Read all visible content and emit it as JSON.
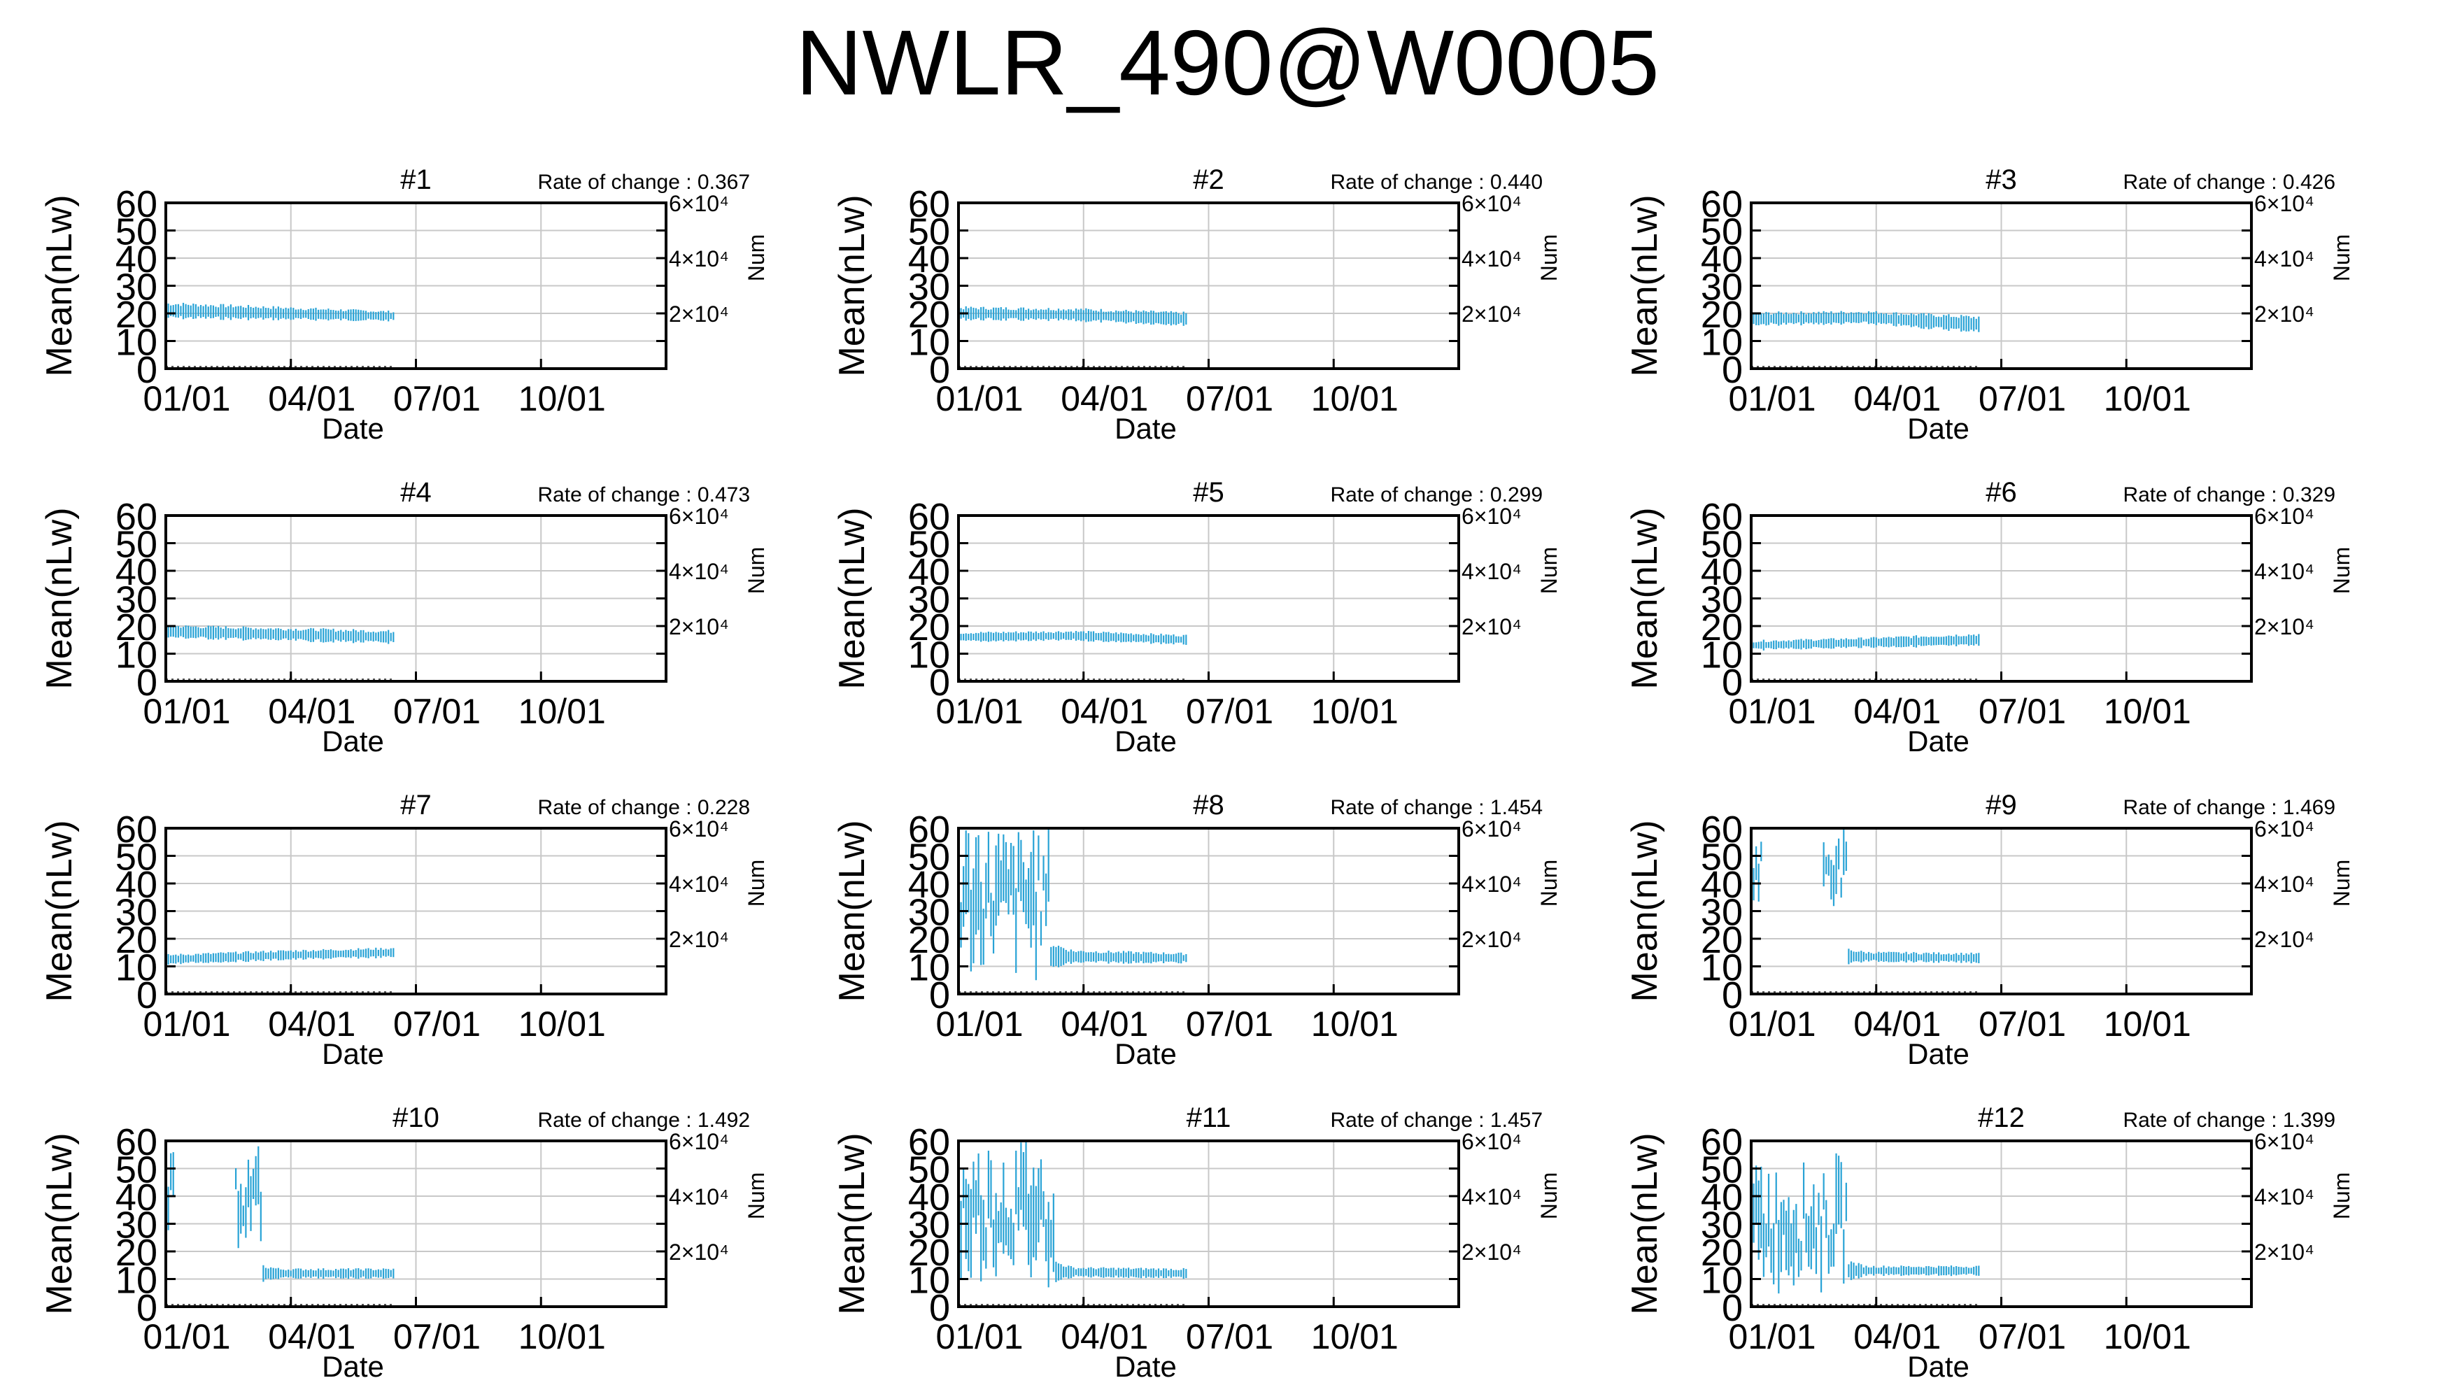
{
  "title": "NWLR_490@W0005",
  "colors": {
    "series": "#29a3d6",
    "grid": "#c8c8c8",
    "axis": "#000000"
  },
  "chart_data": [
    {
      "type": "line",
      "title": "#1",
      "annotation": "Rate of change : 0.367",
      "xlabel": "Date",
      "ylabel": "Mean(nLw)",
      "y2label": "Num",
      "xticks": [
        "01/01",
        "04/01",
        "07/01",
        "10/01"
      ],
      "yticks": [
        "0",
        "10",
        "20",
        "30",
        "40",
        "50",
        "60"
      ],
      "y2ticks": [
        "2×10⁴",
        "4×10⁴",
        "6×10⁴"
      ],
      "ylim": [
        0,
        60
      ],
      "y2lim": [
        0,
        60000
      ],
      "grid": true,
      "range_x": [
        0,
        165
      ],
      "center_y": [
        21,
        20,
        19
      ],
      "spread": [
        5,
        4,
        3
      ],
      "num_level": 400
    },
    {
      "type": "line",
      "title": "#2",
      "annotation": "Rate of change : 0.440",
      "xlabel": "Date",
      "ylabel": "Mean(nLw)",
      "y2label": "Num",
      "xticks": [
        "01/01",
        "04/01",
        "07/01",
        "10/01"
      ],
      "yticks": [
        "0",
        "10",
        "20",
        "30",
        "40",
        "50",
        "60"
      ],
      "y2ticks": [
        "2×10⁴",
        "4×10⁴",
        "6×10⁴"
      ],
      "ylim": [
        0,
        60
      ],
      "y2lim": [
        0,
        60000
      ],
      "grid": true,
      "range_x": [
        0,
        165
      ],
      "center_y": [
        20,
        19.5,
        18
      ],
      "spread": [
        4,
        4,
        4
      ],
      "num_level": 400
    },
    {
      "type": "line",
      "title": "#3",
      "annotation": "Rate of change : 0.426",
      "xlabel": "Date",
      "ylabel": "Mean(nLw)",
      "y2label": "Num",
      "xticks": [
        "01/01",
        "04/01",
        "07/01",
        "10/01"
      ],
      "yticks": [
        "0",
        "10",
        "20",
        "30",
        "40",
        "50",
        "60"
      ],
      "y2ticks": [
        "2×10⁴",
        "4×10⁴",
        "6×10⁴"
      ],
      "ylim": [
        0,
        60
      ],
      "y2lim": [
        0,
        60000
      ],
      "grid": true,
      "range_x": [
        0,
        165
      ],
      "center_y": [
        18,
        18.5,
        16
      ],
      "spread": [
        4,
        4,
        5
      ],
      "num_level": 400
    },
    {
      "type": "line",
      "title": "#4",
      "annotation": "Rate of change : 0.473",
      "xlabel": "Date",
      "ylabel": "Mean(nLw)",
      "y2label": "Num",
      "xticks": [
        "01/01",
        "04/01",
        "07/01",
        "10/01"
      ],
      "yticks": [
        "0",
        "10",
        "20",
        "30",
        "40",
        "50",
        "60"
      ],
      "y2ticks": [
        "2×10⁴",
        "4×10⁴",
        "6×10⁴"
      ],
      "ylim": [
        0,
        60
      ],
      "y2lim": [
        0,
        60000
      ],
      "grid": true,
      "range_x": [
        0,
        165
      ],
      "center_y": [
        18,
        17,
        16
      ],
      "spread": [
        4,
        4,
        4
      ],
      "num_level": 400
    },
    {
      "type": "line",
      "title": "#5",
      "annotation": "Rate of change : 0.299",
      "xlabel": "Date",
      "ylabel": "Mean(nLw)",
      "y2label": "Num",
      "xticks": [
        "01/01",
        "04/01",
        "07/01",
        "10/01"
      ],
      "yticks": [
        "0",
        "10",
        "20",
        "30",
        "40",
        "50",
        "60"
      ],
      "y2ticks": [
        "2×10⁴",
        "4×10⁴",
        "6×10⁴"
      ],
      "ylim": [
        0,
        60
      ],
      "y2lim": [
        0,
        60000
      ],
      "grid": true,
      "range_x": [
        0,
        165
      ],
      "center_y": [
        16,
        16.5,
        15
      ],
      "spread": [
        3,
        3,
        3
      ],
      "num_level": 400
    },
    {
      "type": "line",
      "title": "#6",
      "annotation": "Rate of change : 0.329",
      "xlabel": "Date",
      "ylabel": "Mean(nLw)",
      "y2label": "Num",
      "xticks": [
        "01/01",
        "04/01",
        "07/01",
        "10/01"
      ],
      "yticks": [
        "0",
        "10",
        "20",
        "30",
        "40",
        "50",
        "60"
      ],
      "y2ticks": [
        "2×10⁴",
        "4×10⁴",
        "6×10⁴"
      ],
      "ylim": [
        0,
        60
      ],
      "y2lim": [
        0,
        60000
      ],
      "grid": true,
      "range_x": [
        0,
        165
      ],
      "center_y": [
        13,
        14,
        15
      ],
      "spread": [
        3,
        3,
        4
      ],
      "num_level": 400
    },
    {
      "type": "line",
      "title": "#7",
      "annotation": "Rate of change : 0.228",
      "xlabel": "Date",
      "ylabel": "Mean(nLw)",
      "y2label": "Num",
      "xticks": [
        "01/01",
        "04/01",
        "07/01",
        "10/01"
      ],
      "yticks": [
        "0",
        "10",
        "20",
        "30",
        "40",
        "50",
        "60"
      ],
      "y2ticks": [
        "2×10⁴",
        "4×10⁴",
        "6×10⁴"
      ],
      "ylim": [
        0,
        60
      ],
      "y2lim": [
        0,
        60000
      ],
      "grid": true,
      "range_x": [
        0,
        165
      ],
      "center_y": [
        12.5,
        14,
        15
      ],
      "spread": [
        3,
        3,
        3
      ],
      "num_level": 400
    },
    {
      "type": "line",
      "title": "#8",
      "annotation": "Rate of change : 1.454",
      "xlabel": "Date",
      "ylabel": "Mean(nLw)",
      "y2label": "Num",
      "xticks": [
        "01/01",
        "04/01",
        "07/01",
        "10/01"
      ],
      "yticks": [
        "0",
        "10",
        "20",
        "30",
        "40",
        "50",
        "60"
      ],
      "y2ticks": [
        "2×10⁴",
        "4×10⁴",
        "6×10⁴"
      ],
      "ylim": [
        0,
        60
      ],
      "y2lim": [
        0,
        60000
      ],
      "grid": true,
      "range_x": [
        0,
        165
      ],
      "center_y": [
        35,
        14,
        13
      ],
      "spread": [
        30,
        4,
        3
      ],
      "noisy_until": 65,
      "num_level": 400
    },
    {
      "type": "line",
      "title": "#9",
      "annotation": "Rate of change : 1.469",
      "xlabel": "Date",
      "ylabel": "Mean(nLw)",
      "y2label": "Num",
      "xticks": [
        "01/01",
        "04/01",
        "07/01",
        "10/01"
      ],
      "yticks": [
        "0",
        "10",
        "20",
        "30",
        "40",
        "50",
        "60"
      ],
      "y2ticks": [
        "2×10⁴",
        "4×10⁴",
        "6×10⁴"
      ],
      "ylim": [
        0,
        60
      ],
      "y2lim": [
        0,
        60000
      ],
      "grid": true,
      "range_x": [
        0,
        165
      ],
      "center_y": [
        45,
        14,
        13
      ],
      "spread": [
        15,
        3,
        3
      ],
      "noisy_until": 70,
      "gap": [
        8,
        52
      ],
      "num_level": 400
    },
    {
      "type": "line",
      "title": "#10",
      "annotation": "Rate of change : 1.492",
      "xlabel": "Date",
      "ylabel": "Mean(nLw)",
      "y2label": "Num",
      "xticks": [
        "01/01",
        "04/01",
        "07/01",
        "10/01"
      ],
      "yticks": [
        "0",
        "10",
        "20",
        "30",
        "40",
        "50",
        "60"
      ],
      "y2ticks": [
        "2×10⁴",
        "4×10⁴",
        "6×10⁴"
      ],
      "ylim": [
        0,
        60
      ],
      "y2lim": [
        0,
        60000
      ],
      "grid": true,
      "range_x": [
        0,
        165
      ],
      "center_y": [
        40,
        12,
        12
      ],
      "spread": [
        18,
        3,
        3
      ],
      "noisy_until": 70,
      "gap": [
        6,
        50
      ],
      "num_level": 400
    },
    {
      "type": "line",
      "title": "#11",
      "annotation": "Rate of change : 1.457",
      "xlabel": "Date",
      "ylabel": "Mean(nLw)",
      "y2label": "Num",
      "xticks": [
        "01/01",
        "04/01",
        "07/01",
        "10/01"
      ],
      "yticks": [
        "0",
        "10",
        "20",
        "30",
        "40",
        "50",
        "60"
      ],
      "y2ticks": [
        "2×10⁴",
        "4×10⁴",
        "6×10⁴"
      ],
      "ylim": [
        0,
        60
      ],
      "y2lim": [
        0,
        60000
      ],
      "grid": true,
      "range_x": [
        0,
        165
      ],
      "center_y": [
        35,
        13,
        12
      ],
      "spread": [
        28,
        3,
        3
      ],
      "noisy_until": 70,
      "num_level": 400
    },
    {
      "type": "line",
      "title": "#12",
      "annotation": "Rate of change : 1.399",
      "xlabel": "Date",
      "ylabel": "Mean(nLw)",
      "y2label": "Num",
      "xticks": [
        "01/01",
        "04/01",
        "07/01",
        "10/01"
      ],
      "yticks": [
        "0",
        "10",
        "20",
        "30",
        "40",
        "50",
        "60"
      ],
      "y2ticks": [
        "2×10⁴",
        "4×10⁴",
        "6×10⁴"
      ],
      "ylim": [
        0,
        60
      ],
      "y2lim": [
        0,
        60000
      ],
      "grid": true,
      "range_x": [
        0,
        165
      ],
      "center_y": [
        30,
        13,
        13
      ],
      "spread": [
        25,
        3,
        3
      ],
      "noisy_until": 70,
      "num_level": 400
    }
  ]
}
